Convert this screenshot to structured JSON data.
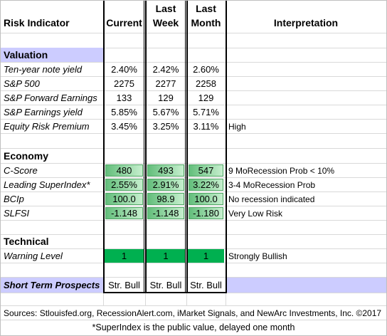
{
  "table": {
    "header": [
      "Risk Indicator",
      "Current",
      "Last Week",
      "Last Month",
      "Interpretation"
    ],
    "valuation": {
      "title": "Valuation",
      "rows": [
        [
          "Ten-year note yield",
          "2.40%",
          "2.42%",
          "2.60%"
        ],
        [
          "S&P 500",
          "2275",
          "2277",
          "2258"
        ],
        [
          "S&P Forward Earnings",
          "133",
          "129",
          "129"
        ],
        [
          "S&P Earnings yield",
          "5.85%",
          "5.67%",
          "5.71%"
        ],
        [
          "Equity Risk Premium",
          "3.45%",
          "3.25%",
          "3.11%",
          "High"
        ]
      ]
    },
    "economy": {
      "title": "Economy",
      "rows": [
        [
          "C-Score",
          "480",
          "493",
          "547",
          "9 MoRecession Prob < 10%"
        ],
        [
          "Leading SuperIndex*",
          "2.55%",
          "2.91%",
          "3.22%",
          "3-4 MoRecession Prob"
        ],
        [
          "BCIp",
          "100.0",
          "98.9",
          "100.0",
          "No recession indicated"
        ],
        [
          "SLFSI",
          "-1.148",
          "-1.148",
          "-1.180",
          "Very Low Risk"
        ]
      ]
    },
    "technical": {
      "title": "Technical",
      "rows": [
        [
          "Warning Level",
          "1",
          "1",
          "1",
          "Strongly Bullish"
        ]
      ]
    },
    "prospects": [
      "Short Term Prospects",
      "Str. Bull",
      "Str. Bull",
      "Str. Bull"
    ],
    "sources": "Sources: Stlouisfed.org, RecessionAlert.com, iMarket Signals, and NewArc Investments, Inc. ©2017",
    "footnote": "*SuperIndex is the public value, delayed one month"
  }
}
